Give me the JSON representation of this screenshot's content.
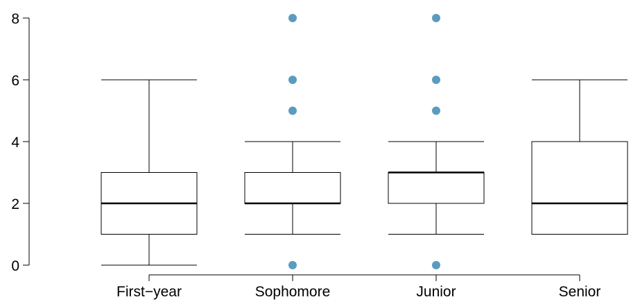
{
  "chart_data": {
    "type": "boxplot",
    "categories": [
      "First−year",
      "Sophomore",
      "Junior",
      "Senior"
    ],
    "y_ticks": [
      0,
      2,
      4,
      6,
      8
    ],
    "ylim": [
      0,
      8
    ],
    "grid": false,
    "legend": "none",
    "outlier_color": "#5b9cbe",
    "boxes": [
      {
        "category": "First−year",
        "whisker_low": 0,
        "q1": 1,
        "median": 2,
        "q3": 3,
        "whisker_high": 6,
        "outliers": []
      },
      {
        "category": "Sophomore",
        "whisker_low": 1,
        "q1": 2,
        "median": 2,
        "q3": 3,
        "whisker_high": 4,
        "outliers": [
          0,
          5,
          6,
          8
        ]
      },
      {
        "category": "Junior",
        "whisker_low": 1,
        "q1": 2,
        "median": 3,
        "q3": 3,
        "whisker_high": 4,
        "outliers": [
          0,
          5,
          6,
          8
        ]
      },
      {
        "category": "Senior",
        "whisker_low": 1,
        "q1": 1,
        "median": 2,
        "q3": 4,
        "whisker_high": 6,
        "outliers": []
      }
    ]
  }
}
